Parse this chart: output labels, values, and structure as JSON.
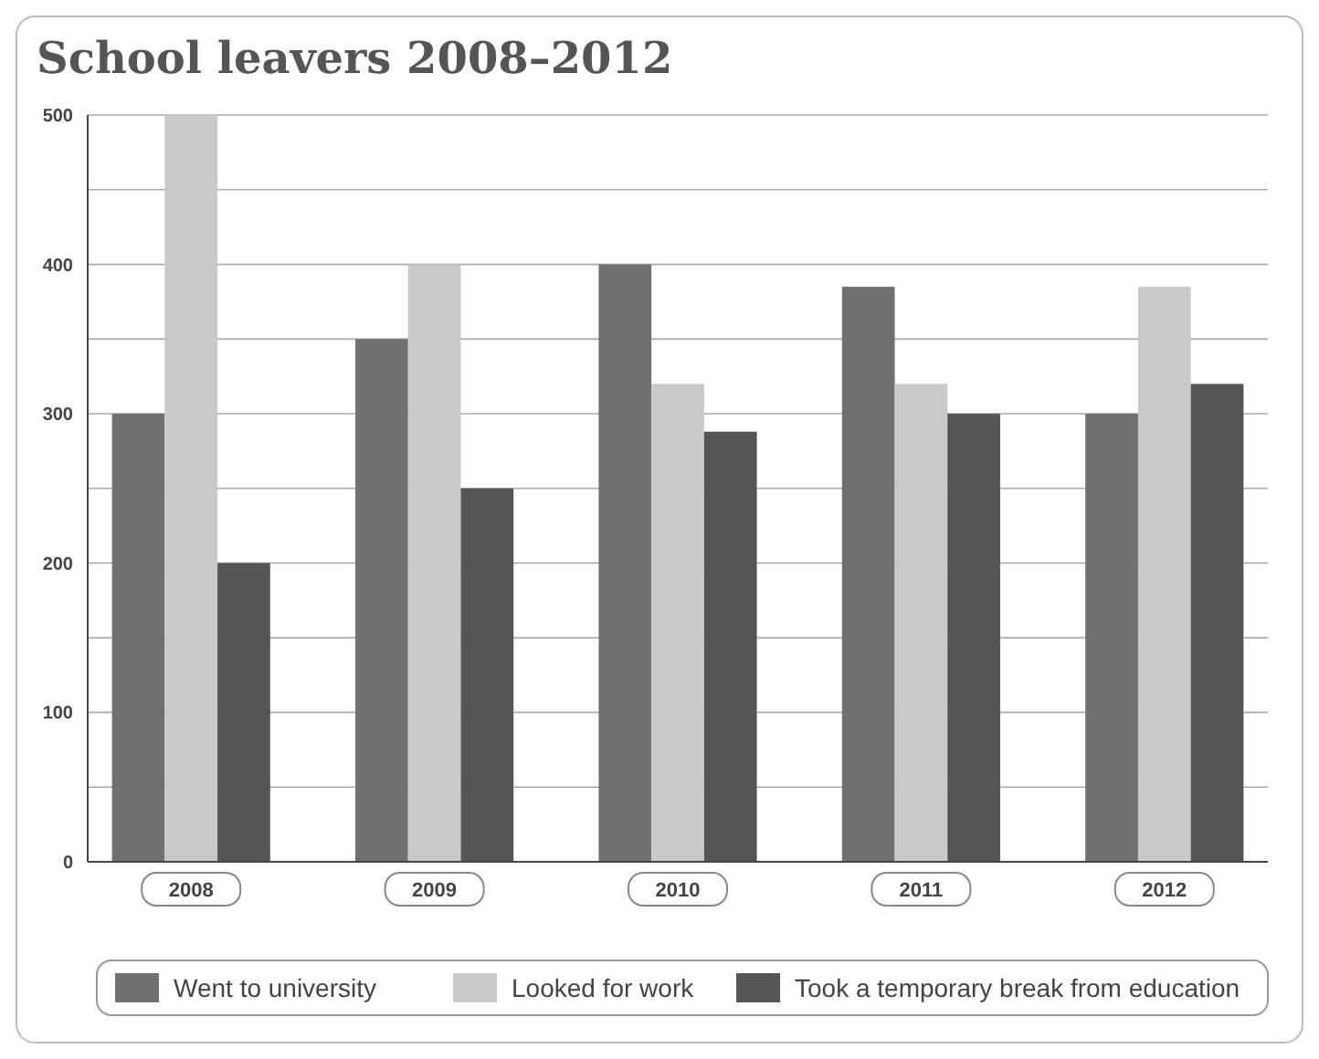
{
  "chart_data": {
    "type": "bar",
    "title": "School leavers 2008–2012",
    "categories": [
      "2008",
      "2009",
      "2010",
      "2011",
      "2012"
    ],
    "series": [
      {
        "name": "Went to university",
        "color": "#707070",
        "values": [
          300,
          350,
          400,
          385,
          300
        ]
      },
      {
        "name": "Looked for work",
        "color": "#c9c9c9",
        "values": [
          500,
          400,
          320,
          320,
          385
        ]
      },
      {
        "name": "Took a temporary break from education",
        "color": "#555555",
        "values": [
          200,
          250,
          288,
          300,
          320
        ]
      }
    ],
    "ylim": [
      0,
      500
    ],
    "yticks": [
      0,
      {
        "value": 50,
        "label": null
      },
      100,
      {
        "value": 150,
        "label": null
      },
      200,
      {
        "value": 250,
        "label": null
      },
      300,
      {
        "value": 350,
        "label": null
      },
      400,
      {
        "value": 450,
        "label": null
      },
      500
    ],
    "grid": "y",
    "legend": "bottom"
  }
}
